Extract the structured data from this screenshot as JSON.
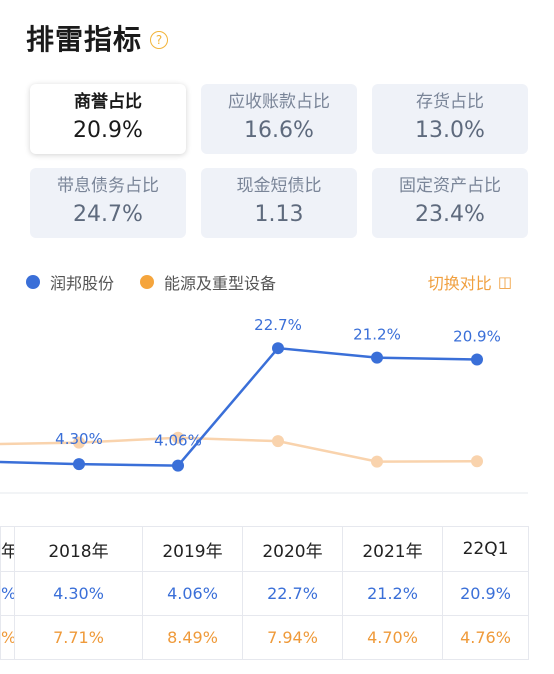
{
  "header": {
    "title": "排雷指标",
    "help_icon": "question-circle-icon"
  },
  "metrics": [
    {
      "label": "商誉占比",
      "value": "20.9%",
      "selected": true
    },
    {
      "label": "应收账款占比",
      "value": "16.6%",
      "selected": false
    },
    {
      "label": "存货占比",
      "value": "13.0%",
      "selected": false
    },
    {
      "label": "带息债务占比",
      "value": "24.7%",
      "selected": false
    },
    {
      "label": "现金短债比",
      "value": "1.13",
      "selected": false
    },
    {
      "label": "固定资产占比",
      "value": "23.4%",
      "selected": false
    }
  ],
  "legend": {
    "company": "润邦股份",
    "industry": "能源及重型设备",
    "switch_label": "切换对比",
    "switch_icon": "swap-icon"
  },
  "colors": {
    "company": "#3a6fd8",
    "industry": "#f9d3ad",
    "industry_text": "#ef9a3a",
    "accent": "#f0a040"
  },
  "chart_data": {
    "type": "line",
    "x": [
      "",
      "2018年",
      "2019年",
      "2020年",
      "2021年",
      "22Q1"
    ],
    "series": [
      {
        "name": "润邦股份",
        "values": [
          null,
          4.3,
          4.06,
          22.7,
          21.2,
          20.9
        ],
        "labels": [
          "",
          "4.30%",
          "4.06%",
          "22.7%",
          "21.2%",
          "20.9%"
        ]
      },
      {
        "name": "能源及重型设备",
        "values": [
          null,
          7.71,
          8.49,
          7.94,
          4.7,
          4.76
        ]
      }
    ]
  },
  "table": {
    "headers": [
      "年",
      "2018年",
      "2019年",
      "2020年",
      "2021年",
      "22Q1"
    ],
    "rows": [
      [
        "%",
        "4.30%",
        "4.06%",
        "22.7%",
        "21.2%",
        "20.9%"
      ],
      [
        "%",
        "7.71%",
        "8.49%",
        "7.94%",
        "4.70%",
        "4.76%"
      ]
    ]
  }
}
